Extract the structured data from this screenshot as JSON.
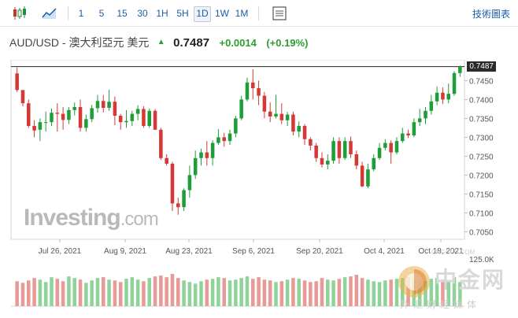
{
  "toolbar": {
    "timeframes": [
      "1",
      "5",
      "15",
      "30",
      "1H",
      "5H",
      "1D",
      "1W",
      "1M"
    ],
    "active_timeframe": "1D",
    "chart_link": "技術圖表"
  },
  "quote": {
    "symbol": "AUD/USD - 澳大利亞元 美元",
    "price": "0.7487",
    "change": "+0.0014",
    "change_pct": "(+0.19%)"
  },
  "price_tag": "0.7487",
  "watermark": {
    "brand": "Investing",
    "suffix": ".com"
  },
  "logo": {
    "name": "中金网",
    "url": "CNGOLD.COM",
    "subtitle": "外汇财经媒体"
  },
  "colors": {
    "up": "#1e9e3a",
    "down": "#d33a36",
    "vol_up": "#8fd39a",
    "vol_down": "#e99a97",
    "link": "#1a5ea8"
  },
  "chart_data": {
    "type": "candlestick",
    "y_ticks": [
      "0.7450",
      "0.7400",
      "0.7350",
      "0.7300",
      "0.7250",
      "0.7200",
      "0.7150",
      "0.7100",
      "0.7050"
    ],
    "ylim": [
      0.703,
      0.7505
    ],
    "x_ticks": [
      "Jul 26, 2021",
      "Aug 9, 2021",
      "Aug 23, 2021",
      "Sep 6, 2021",
      "Sep 20, 2021",
      "Oct 4, 2021",
      "Oct 18, 2021"
    ],
    "volume_label": "125.0K",
    "last_price": 0.7487,
    "candles": [
      [
        0.7469,
        0.7485,
        0.7425,
        0.742
      ],
      [
        0.7425,
        0.742,
        0.739,
        0.7382
      ],
      [
        0.739,
        0.74,
        0.733,
        0.7325
      ],
      [
        0.733,
        0.7345,
        0.7318,
        0.73
      ],
      [
        0.732,
        0.735,
        0.734,
        0.729
      ],
      [
        0.734,
        0.7368,
        0.734,
        0.7315
      ],
      [
        0.734,
        0.7376,
        0.7365,
        0.733
      ],
      [
        0.7365,
        0.739,
        0.7362,
        0.7315
      ],
      [
        0.7362,
        0.738,
        0.7346,
        0.732
      ],
      [
        0.7346,
        0.738,
        0.7372,
        0.7335
      ],
      [
        0.7372,
        0.7392,
        0.738,
        0.7358
      ],
      [
        0.738,
        0.74,
        0.7325,
        0.7315
      ],
      [
        0.7325,
        0.736,
        0.7348,
        0.7315
      ],
      [
        0.7348,
        0.7386,
        0.7377,
        0.734
      ],
      [
        0.7377,
        0.7412,
        0.7396,
        0.7365
      ],
      [
        0.7396,
        0.7412,
        0.7378,
        0.7366
      ],
      [
        0.7378,
        0.7426,
        0.7394,
        0.737
      ],
      [
        0.7394,
        0.7408,
        0.7357,
        0.7332
      ],
      [
        0.7357,
        0.7362,
        0.734,
        0.732
      ],
      [
        0.734,
        0.7372,
        0.7343,
        0.7325
      ],
      [
        0.7343,
        0.737,
        0.7362,
        0.733
      ],
      [
        0.7362,
        0.7385,
        0.7375,
        0.7345
      ],
      [
        0.7375,
        0.7382,
        0.733,
        0.7325
      ],
      [
        0.733,
        0.7376,
        0.737,
        0.7325
      ],
      [
        0.737,
        0.7375,
        0.732,
        0.732
      ],
      [
        0.732,
        0.7325,
        0.7245,
        0.724
      ],
      [
        0.7245,
        0.7255,
        0.723,
        0.7225
      ],
      [
        0.723,
        0.7235,
        0.7125,
        0.7105
      ],
      [
        0.7125,
        0.714,
        0.7115,
        0.7095
      ],
      [
        0.7115,
        0.7165,
        0.716,
        0.7105
      ],
      [
        0.716,
        0.7225,
        0.72,
        0.714
      ],
      [
        0.72,
        0.7265,
        0.7245,
        0.719
      ],
      [
        0.7245,
        0.727,
        0.726,
        0.7225
      ],
      [
        0.726,
        0.729,
        0.7245,
        0.7225
      ],
      [
        0.7245,
        0.7292,
        0.7285,
        0.7225
      ],
      [
        0.7285,
        0.7322,
        0.73,
        0.728
      ],
      [
        0.73,
        0.7312,
        0.729,
        0.7275
      ],
      [
        0.729,
        0.732,
        0.731,
        0.728
      ],
      [
        0.731,
        0.7357,
        0.735,
        0.73
      ],
      [
        0.735,
        0.741,
        0.74,
        0.7345
      ],
      [
        0.74,
        0.7458,
        0.7445,
        0.7395
      ],
      [
        0.7445,
        0.748,
        0.743,
        0.74
      ],
      [
        0.743,
        0.745,
        0.741,
        0.7385
      ],
      [
        0.741,
        0.742,
        0.7368,
        0.735
      ],
      [
        0.7368,
        0.7392,
        0.7355,
        0.734
      ],
      [
        0.7355,
        0.7412,
        0.7362,
        0.735
      ],
      [
        0.7362,
        0.739,
        0.7345,
        0.7335
      ],
      [
        0.7345,
        0.7367,
        0.736,
        0.733
      ],
      [
        0.736,
        0.7368,
        0.7315,
        0.7305
      ],
      [
        0.7315,
        0.7342,
        0.733,
        0.73
      ],
      [
        0.733,
        0.7335,
        0.7295,
        0.728
      ],
      [
        0.7295,
        0.73,
        0.7278,
        0.7265
      ],
      [
        0.7278,
        0.7285,
        0.7245,
        0.7235
      ],
      [
        0.7245,
        0.726,
        0.7228,
        0.722
      ],
      [
        0.7228,
        0.7255,
        0.7238,
        0.7215
      ],
      [
        0.7238,
        0.73,
        0.729,
        0.723
      ],
      [
        0.729,
        0.73,
        0.7245,
        0.723
      ],
      [
        0.7245,
        0.73,
        0.729,
        0.724
      ],
      [
        0.729,
        0.7302,
        0.7255,
        0.7245
      ],
      [
        0.7255,
        0.7265,
        0.7225,
        0.7215
      ],
      [
        0.7225,
        0.7235,
        0.717,
        0.7168
      ],
      [
        0.717,
        0.723,
        0.7215,
        0.7165
      ],
      [
        0.7215,
        0.7255,
        0.7245,
        0.721
      ],
      [
        0.7245,
        0.7285,
        0.7272,
        0.724
      ],
      [
        0.7272,
        0.7295,
        0.7285,
        0.7265
      ],
      [
        0.7285,
        0.7292,
        0.726,
        0.723
      ],
      [
        0.726,
        0.73,
        0.729,
        0.7255
      ],
      [
        0.729,
        0.7325,
        0.731,
        0.7285
      ],
      [
        0.731,
        0.732,
        0.7305,
        0.7298
      ],
      [
        0.7305,
        0.735,
        0.734,
        0.73
      ],
      [
        0.734,
        0.7375,
        0.735,
        0.733
      ],
      [
        0.735,
        0.738,
        0.737,
        0.7335
      ],
      [
        0.737,
        0.7412,
        0.7395,
        0.736
      ],
      [
        0.7395,
        0.7435,
        0.7418,
        0.7385
      ],
      [
        0.7418,
        0.7432,
        0.74,
        0.7388
      ],
      [
        0.74,
        0.7442,
        0.7415,
        0.739
      ],
      [
        0.7415,
        0.7475,
        0.747,
        0.741
      ],
      [
        0.747,
        0.749,
        0.7487,
        0.746
      ]
    ],
    "volume": [
      62,
      58,
      64,
      70,
      66,
      60,
      72,
      68,
      62,
      74,
      70,
      66,
      58,
      64,
      70,
      72,
      66,
      64,
      60,
      68,
      72,
      66,
      62,
      70,
      74,
      76,
      72,
      80,
      70,
      64,
      60,
      56,
      62,
      66,
      68,
      72,
      70,
      64,
      66,
      70,
      74,
      68,
      72,
      66,
      64,
      60,
      62,
      66,
      70,
      68,
      64,
      60,
      62,
      70,
      66,
      64,
      68,
      72,
      74,
      78,
      70,
      66,
      62,
      60,
      64,
      66,
      68,
      70,
      72,
      66,
      64,
      62,
      68,
      70,
      66,
      64,
      72,
      60
    ]
  }
}
